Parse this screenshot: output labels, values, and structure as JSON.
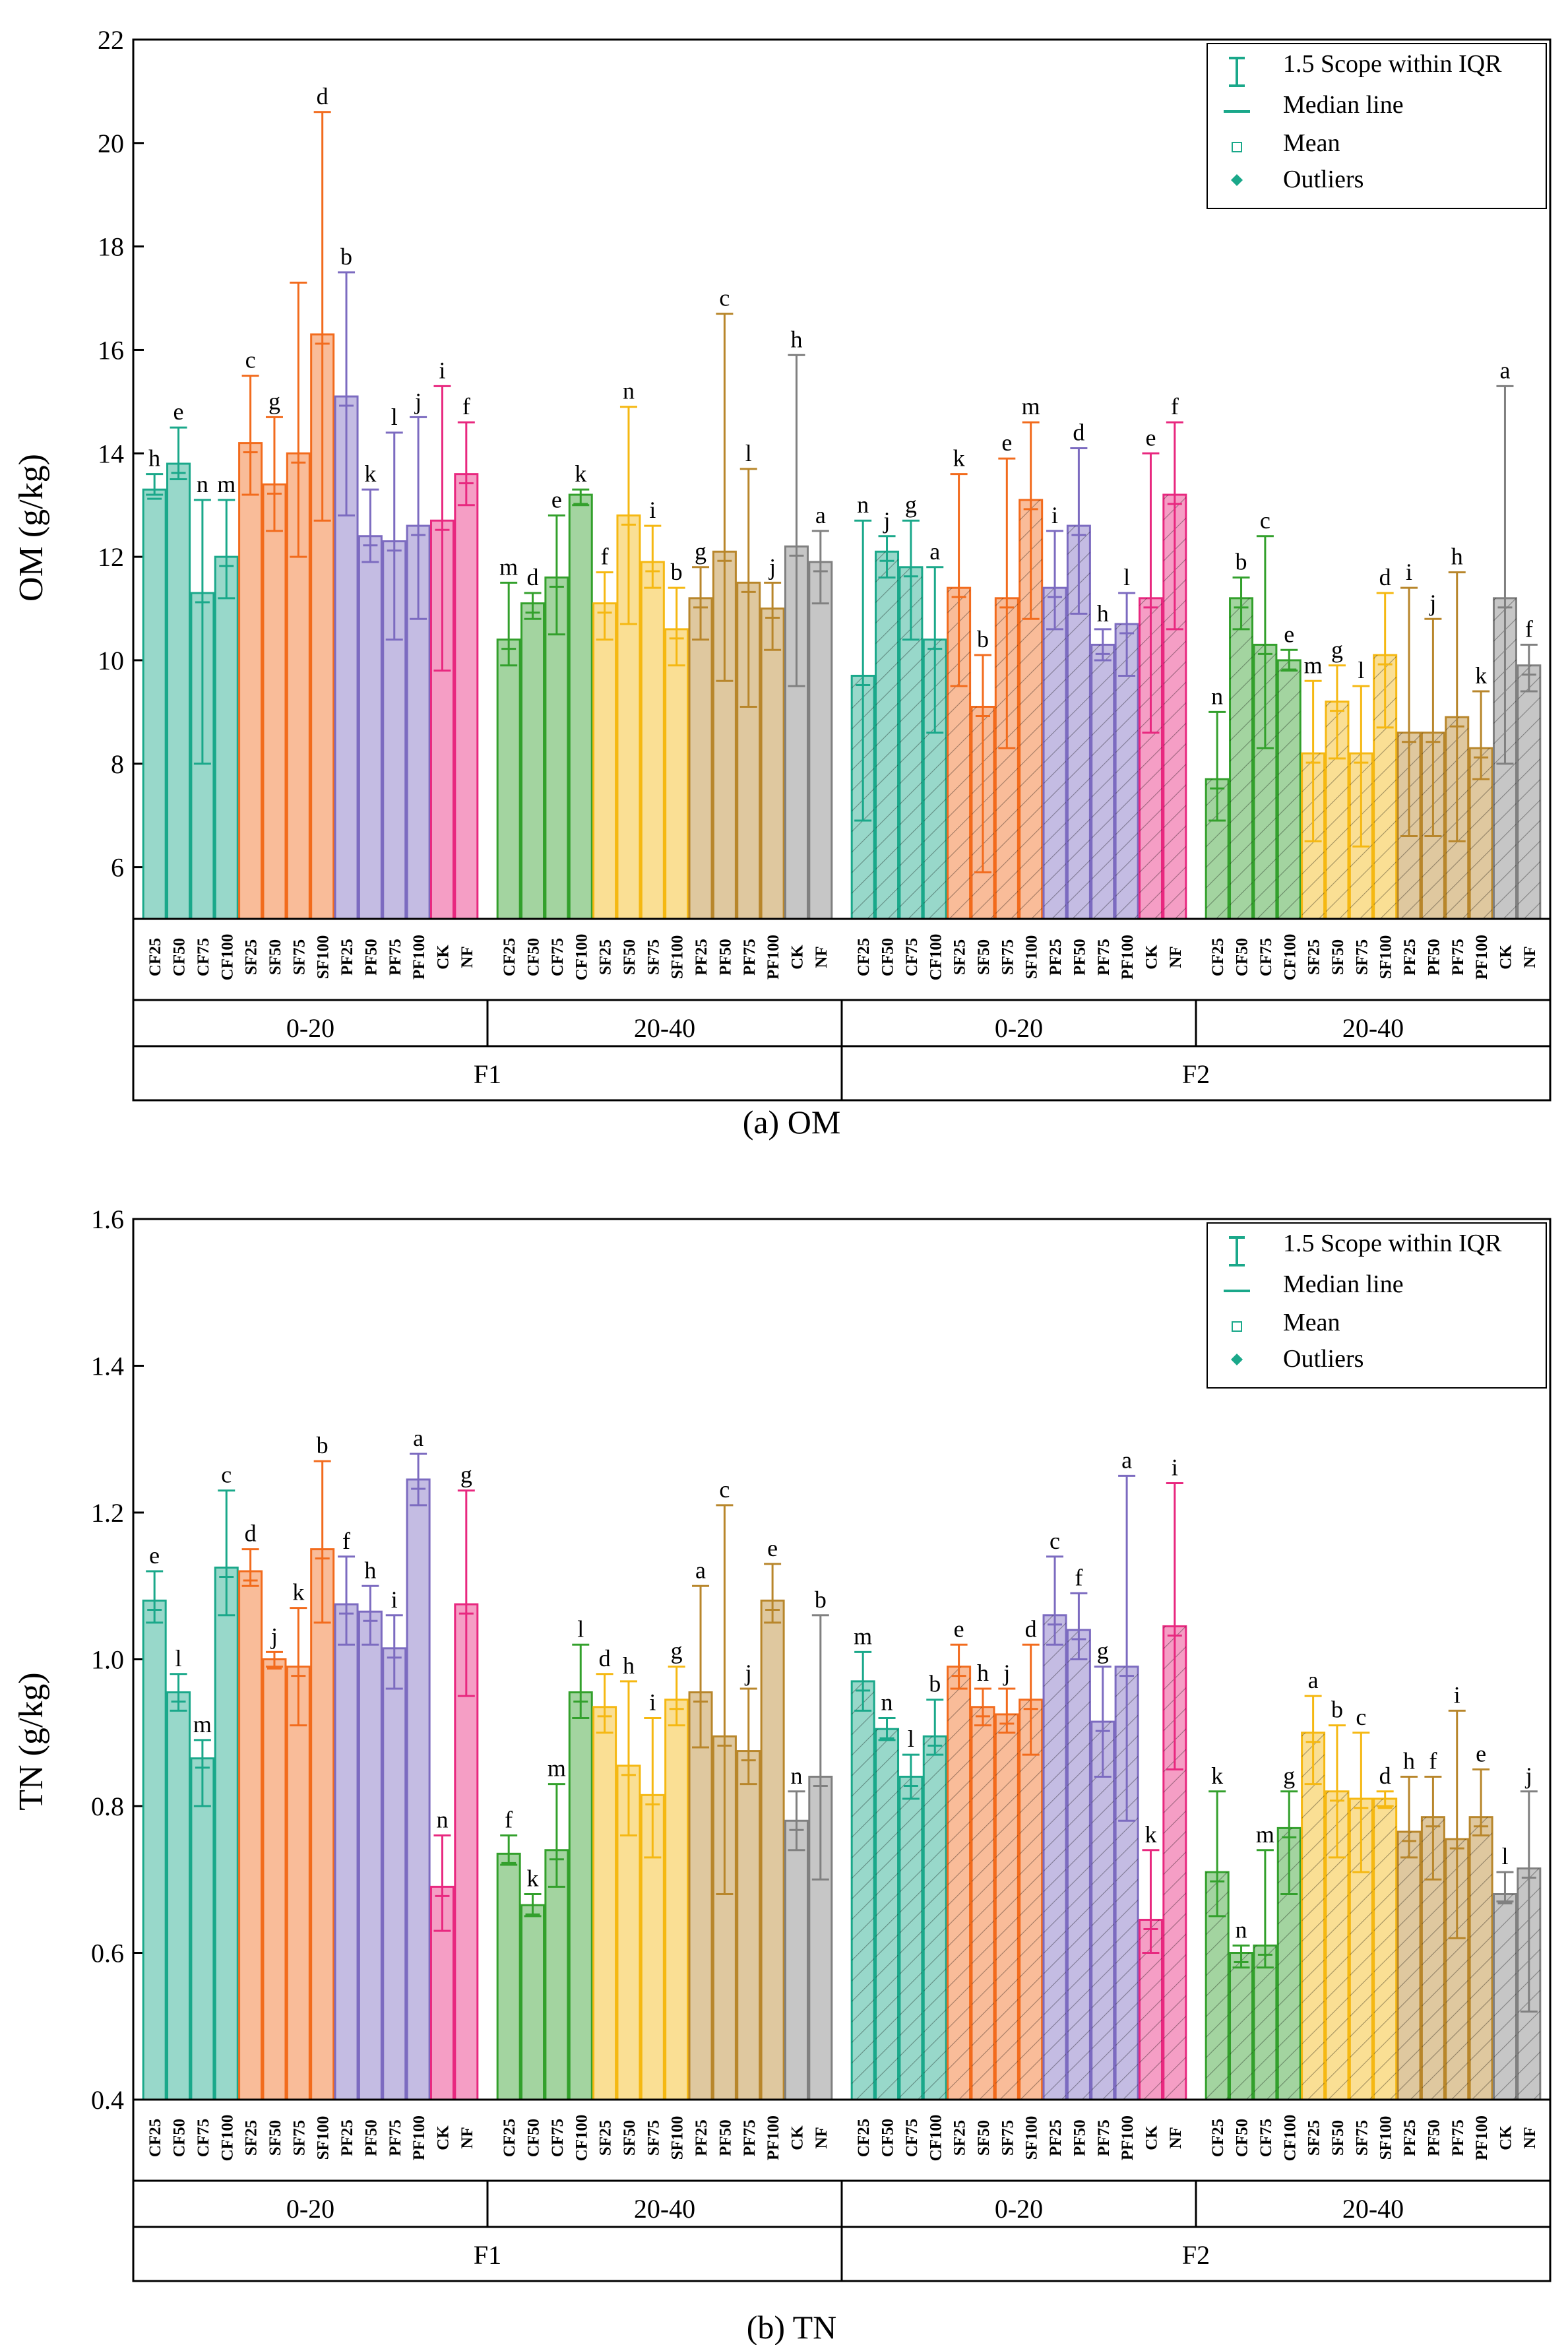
{
  "chart_data": [
    {
      "type": "bar",
      "panel": "a",
      "caption": "(a) OM",
      "ylabel": "OM (g/kg)",
      "ylim": [
        5,
        22
      ],
      "yticks": [
        6,
        8,
        10,
        12,
        14,
        16,
        18,
        20,
        22
      ],
      "legend": {
        "position": "top-right",
        "entries": [
          "1.5 Scope within IQR",
          "Median line",
          "Mean",
          "Outliers"
        ]
      },
      "factor_labels": [
        "F1",
        "F2"
      ],
      "depth_labels": [
        "0-20",
        "20-40"
      ],
      "categories": [
        "CF25",
        "CF50",
        "CF75",
        "CF100",
        "SF25",
        "SF50",
        "SF75",
        "SF100",
        "PF25",
        "PF50",
        "PF75",
        "PF100",
        "CK",
        "NF"
      ],
      "groups": [
        {
          "factor": "F1",
          "depth": "0-20",
          "values": [
            13.3,
            13.8,
            11.3,
            12.0,
            14.2,
            13.4,
            14.0,
            16.3,
            15.1,
            12.4,
            12.3,
            12.6,
            12.7,
            13.6
          ],
          "upper": [
            13.6,
            14.5,
            13.1,
            13.1,
            15.5,
            14.7,
            17.3,
            20.6,
            17.5,
            13.3,
            14.4,
            14.7,
            15.3,
            14.6
          ],
          "lower": [
            13.2,
            13.5,
            8.0,
            11.2,
            13.2,
            12.5,
            12.0,
            12.7,
            12.8,
            11.9,
            10.4,
            10.8,
            9.8,
            13.0
          ],
          "letters": [
            "h",
            "e",
            "n",
            "m",
            "c",
            "g",
            "",
            "d",
            "b",
            "k",
            "l",
            "j",
            "i",
            "f"
          ]
        },
        {
          "factor": "F1",
          "depth": "20-40",
          "values": [
            10.4,
            11.1,
            11.6,
            13.2,
            11.1,
            12.8,
            11.9,
            10.6,
            11.2,
            12.1,
            11.5,
            11.0,
            12.2,
            11.9
          ],
          "upper": [
            11.5,
            11.3,
            12.8,
            13.3,
            11.7,
            14.9,
            12.6,
            11.4,
            11.8,
            16.7,
            13.7,
            11.5,
            15.9,
            12.5
          ],
          "lower": [
            9.9,
            10.8,
            10.5,
            13.0,
            10.4,
            10.7,
            11.4,
            9.9,
            10.4,
            9.6,
            9.1,
            10.2,
            9.5,
            11.1
          ],
          "letters": [
            "m",
            "d",
            "e",
            "k",
            "f",
            "n",
            "i",
            "b",
            "g",
            "c",
            "l",
            "j",
            "h",
            "a"
          ]
        },
        {
          "factor": "F2",
          "depth": "0-20",
          "values": [
            9.7,
            12.1,
            11.8,
            10.4,
            11.4,
            9.1,
            11.2,
            13.1,
            11.4,
            12.6,
            10.3,
            10.7,
            11.2,
            13.2
          ],
          "upper": [
            12.7,
            12.4,
            12.7,
            11.8,
            13.6,
            10.1,
            13.9,
            14.6,
            12.5,
            14.1,
            10.6,
            11.3,
            14.0,
            14.6
          ],
          "lower": [
            6.9,
            11.6,
            10.4,
            8.6,
            9.5,
            5.9,
            8.3,
            10.8,
            10.6,
            10.9,
            10.0,
            9.7,
            8.6,
            10.6
          ],
          "letters": [
            "n",
            "j",
            "g",
            "a",
            "k",
            "b",
            "e",
            "m",
            "i",
            "d",
            "h",
            "l",
            "e",
            "f"
          ]
        },
        {
          "factor": "F2",
          "depth": "20-40",
          "values": [
            7.7,
            11.2,
            10.3,
            10.0,
            8.2,
            9.2,
            8.2,
            10.1,
            8.6,
            8.6,
            8.9,
            8.3,
            11.2,
            9.9
          ],
          "upper": [
            9.0,
            11.6,
            12.4,
            10.2,
            9.6,
            9.9,
            9.5,
            11.3,
            11.4,
            10.8,
            11.7,
            9.4,
            15.3,
            10.3
          ],
          "lower": [
            6.9,
            10.6,
            8.3,
            9.8,
            6.5,
            8.1,
            6.4,
            8.7,
            6.6,
            6.6,
            6.5,
            7.7,
            8.0,
            9.4
          ],
          "letters": [
            "n",
            "b",
            "c",
            "e",
            "m",
            "g",
            "l",
            "d",
            "i",
            "j",
            "h",
            "k",
            "a",
            "f"
          ]
        }
      ]
    },
    {
      "type": "bar",
      "panel": "b",
      "caption": "(b) TN",
      "ylabel": "TN (g/kg)",
      "ylim": [
        0.4,
        1.6
      ],
      "yticks": [
        "0.4",
        "0.6",
        "0.8",
        "1.0",
        "1.2",
        "1.4",
        "1.6"
      ],
      "legend": {
        "position": "top-right",
        "entries": [
          "1.5 Scope within IQR",
          "Median line",
          "Mean",
          "Outliers"
        ]
      },
      "factor_labels": [
        "F1",
        "F2"
      ],
      "depth_labels": [
        "0-20",
        "20-40"
      ],
      "categories": [
        "CF25",
        "CF50",
        "CF75",
        "CF100",
        "SF25",
        "SF50",
        "SF75",
        "SF100",
        "PF25",
        "PF50",
        "PF75",
        "PF100",
        "CK",
        "NF"
      ],
      "groups": [
        {
          "factor": "F1",
          "depth": "0-20",
          "values": [
            1.08,
            0.955,
            0.865,
            1.125,
            1.12,
            1.0,
            0.99,
            1.15,
            1.075,
            1.065,
            1.015,
            1.245,
            0.69,
            1.075
          ],
          "upper": [
            1.12,
            0.98,
            0.89,
            1.23,
            1.15,
            1.01,
            1.07,
            1.27,
            1.14,
            1.1,
            1.06,
            1.28,
            0.76,
            1.23
          ],
          "lower": [
            1.05,
            0.93,
            0.8,
            1.06,
            1.1,
            0.99,
            0.91,
            1.05,
            1.02,
            1.02,
            0.96,
            1.21,
            0.63,
            0.95
          ],
          "letters": [
            "e",
            "l",
            "m",
            "c",
            "d",
            "j",
            "k",
            "b",
            "f",
            "h",
            "i",
            "a",
            "n",
            "g"
          ]
        },
        {
          "factor": "F1",
          "depth": "20-40",
          "values": [
            0.735,
            0.665,
            0.74,
            0.955,
            0.935,
            0.855,
            0.815,
            0.945,
            0.955,
            0.895,
            0.875,
            1.08,
            0.78,
            0.84
          ],
          "upper": [
            0.76,
            0.68,
            0.83,
            1.02,
            0.98,
            0.97,
            0.92,
            0.99,
            1.1,
            1.21,
            0.96,
            1.13,
            0.82,
            1.06
          ],
          "lower": [
            0.72,
            0.65,
            0.69,
            0.92,
            0.9,
            0.76,
            0.73,
            0.91,
            0.88,
            0.68,
            0.83,
            1.05,
            0.74,
            0.7
          ],
          "letters": [
            "f",
            "k",
            "m",
            "l",
            "d",
            "h",
            "i",
            "g",
            "a",
            "c",
            "j",
            "e",
            "n",
            "b"
          ]
        },
        {
          "factor": "F2",
          "depth": "0-20",
          "values": [
            0.97,
            0.905,
            0.84,
            0.895,
            0.99,
            0.935,
            0.925,
            0.945,
            1.06,
            1.04,
            0.915,
            0.99,
            0.645,
            1.045
          ],
          "upper": [
            1.01,
            0.92,
            0.87,
            0.945,
            1.02,
            0.96,
            0.96,
            1.02,
            1.14,
            1.09,
            0.99,
            1.25,
            0.74,
            1.24
          ],
          "lower": [
            0.93,
            0.89,
            0.81,
            0.87,
            0.96,
            0.91,
            0.9,
            0.87,
            1.02,
            1.0,
            0.84,
            0.78,
            0.6,
            0.85
          ],
          "letters": [
            "m",
            "n",
            "l",
            "b",
            "e",
            "h",
            "j",
            "d",
            "c",
            "f",
            "g",
            "a",
            "k",
            "i"
          ]
        },
        {
          "factor": "F2",
          "depth": "20-40",
          "values": [
            0.71,
            0.6,
            0.61,
            0.77,
            0.9,
            0.82,
            0.81,
            0.81,
            0.765,
            0.785,
            0.755,
            0.785,
            0.68,
            0.715
          ],
          "upper": [
            0.82,
            0.61,
            0.74,
            0.82,
            0.95,
            0.91,
            0.9,
            0.82,
            0.84,
            0.84,
            0.93,
            0.85,
            0.71,
            0.82
          ],
          "lower": [
            0.65,
            0.58,
            0.58,
            0.68,
            0.83,
            0.73,
            0.71,
            0.8,
            0.73,
            0.7,
            0.62,
            0.76,
            0.67,
            0.52
          ],
          "letters": [
            "k",
            "n",
            "m",
            "g",
            "a",
            "b",
            "c",
            "d",
            "h",
            "f",
            "i",
            "e",
            "l",
            "j"
          ]
        }
      ]
    }
  ]
}
